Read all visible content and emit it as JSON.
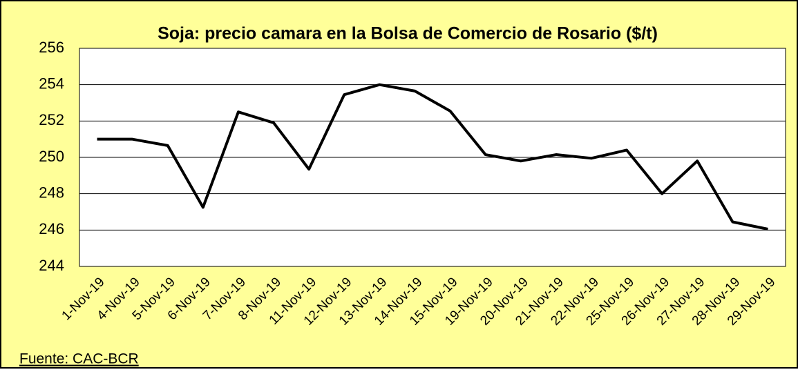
{
  "chart_data": {
    "type": "line",
    "title": "Soja: precio camara  en la Bolsa de Comercio de Rosario ($/t)",
    "source": "Fuente: CAC-BCR",
    "categories": [
      "1-Nov-19",
      "4-Nov-19",
      "5-Nov-19",
      "6-Nov-19",
      "7-Nov-19",
      "8-Nov-19",
      "11-Nov-19",
      "12-Nov-19",
      "13-Nov-19",
      "14-Nov-19",
      "15-Nov-19",
      "19-Nov-19",
      "20-Nov-19",
      "21-Nov-19",
      "22-Nov-19",
      "25-Nov-19",
      "26-Nov-19",
      "27-Nov-19",
      "28-Nov-19",
      "29-Nov-19"
    ],
    "series": [
      {
        "color": "#000000",
        "values": [
          251.0,
          251.0,
          250.65,
          247.25,
          252.5,
          251.9,
          249.35,
          253.45,
          254.0,
          253.65,
          252.55,
          250.15,
          249.8,
          250.15,
          249.95,
          250.4,
          248.0,
          249.8,
          246.45,
          246.05
        ]
      }
    ],
    "ylim": [
      244,
      256
    ],
    "yticks": [
      244,
      246,
      248,
      250,
      252,
      254,
      256
    ],
    "grid": true,
    "background": "#ffff99"
  }
}
